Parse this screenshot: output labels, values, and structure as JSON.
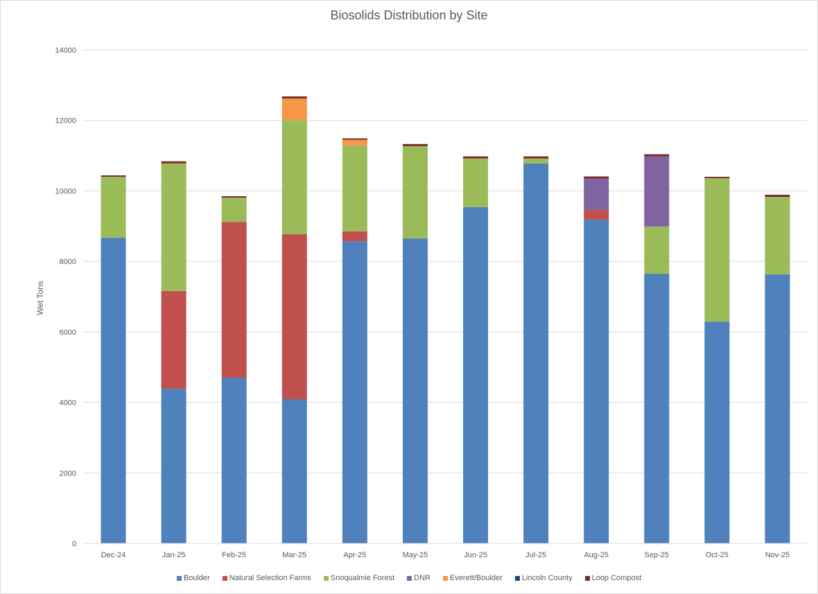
{
  "chart_data": {
    "type": "bar",
    "stacked": true,
    "title": "Biosolids Distribution by Site",
    "xlabel": "",
    "ylabel": "Wet Tons",
    "ylim": [
      0,
      14000
    ],
    "yticks": [
      "0",
      "2000",
      "4000",
      "6000",
      "8000",
      "10000",
      "12000",
      "14000"
    ],
    "grid": true,
    "legend_position": "bottom",
    "categories": [
      "Dec-24",
      "Jan-25",
      "Feb-25",
      "Mar-25",
      "Apr-25",
      "May-25",
      "Jun-25",
      "Jul-25",
      "Aug-25",
      "Sep-25",
      "Oct-25",
      "Nov-25"
    ],
    "series": [
      {
        "name": "Boulder",
        "color": "#4f81bd",
        "values": [
          8670,
          4390,
          4700,
          4090,
          8570,
          8650,
          9540,
          10780,
          9180,
          7650,
          6290,
          7630
        ]
      },
      {
        "name": "Natural Selection Farms",
        "color": "#c0504d",
        "values": [
          0,
          2770,
          4420,
          4680,
          280,
          0,
          0,
          0,
          280,
          0,
          0,
          0
        ]
      },
      {
        "name": "Snoqualmie Forest",
        "color": "#9bbb59",
        "values": [
          1730,
          3620,
          690,
          3240,
          2440,
          2620,
          1380,
          140,
          0,
          1340,
          4070,
          2200
        ]
      },
      {
        "name": "DNR",
        "color": "#8064a2",
        "values": [
          0,
          0,
          0,
          0,
          0,
          0,
          0,
          0,
          890,
          1990,
          0,
          0
        ]
      },
      {
        "name": "Everett/Boulder",
        "color": "#f79646",
        "values": [
          0,
          0,
          0,
          610,
          160,
          0,
          0,
          0,
          0,
          0,
          0,
          0
        ]
      },
      {
        "name": "Lincoln County",
        "color": "#1f497d",
        "values": [
          0,
          0,
          0,
          0,
          0,
          0,
          0,
          0,
          0,
          0,
          0,
          0
        ]
      },
      {
        "name": "Loop Compost",
        "color": "#772c2a",
        "values": [
          40,
          60,
          40,
          60,
          40,
          60,
          60,
          60,
          60,
          60,
          40,
          60
        ]
      }
    ]
  }
}
